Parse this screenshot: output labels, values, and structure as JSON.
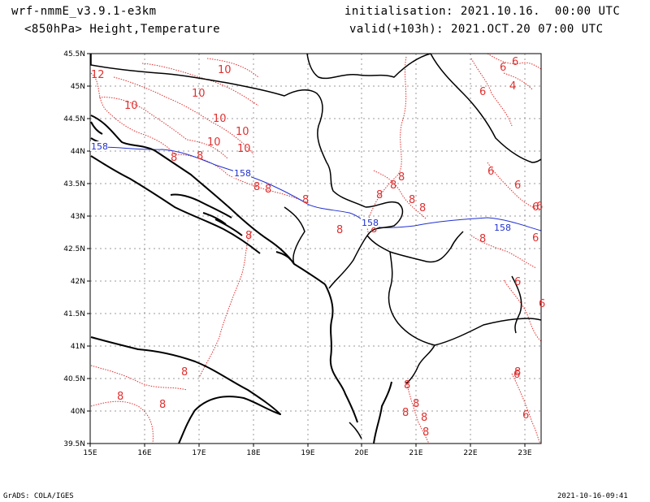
{
  "header": {
    "model": "wrf-nmmE_v3.9.1-e3km",
    "field": "<850hPa> Height,Temperature",
    "init": "initialisation: 2021.10.16.  00:00 UTC",
    "valid": "valid(+103h): 2021.OCT.20 07:00 UTC"
  },
  "footer": {
    "software": "GrADS: COLA/IGES",
    "timestamp": "2021-10-16-09:41"
  },
  "map": {
    "lon_labels": [
      "15E",
      "16E",
      "17E",
      "18E",
      "19E",
      "20E",
      "21E",
      "22E",
      "23E"
    ],
    "lat_labels": [
      "45.5N",
      "45N",
      "44.5N",
      "44N",
      "43.5N",
      "43N",
      "42.5N",
      "42N",
      "41.5N",
      "41N",
      "40.5N",
      "40N",
      "39.5N"
    ],
    "temperature_labels": [
      "12",
      "10",
      "10",
      "10",
      "10",
      "10",
      "10",
      "10",
      "8",
      "8",
      "8",
      "8",
      "8",
      "8",
      "8",
      "8",
      "8",
      "8",
      "8",
      "8",
      "8",
      "8",
      "8",
      "8",
      "8",
      "8",
      "8",
      "8",
      "8",
      "8",
      "6",
      "6",
      "6",
      "6",
      "6",
      "6",
      "6",
      "6",
      "6",
      "6",
      "6",
      "6",
      "4",
      "8"
    ],
    "height_labels": [
      "158",
      "158",
      "158",
      "158"
    ],
    "colors": {
      "coast": "#000000",
      "temperature": "#e03030",
      "height": "#2030d0",
      "grid": "#999999"
    }
  }
}
